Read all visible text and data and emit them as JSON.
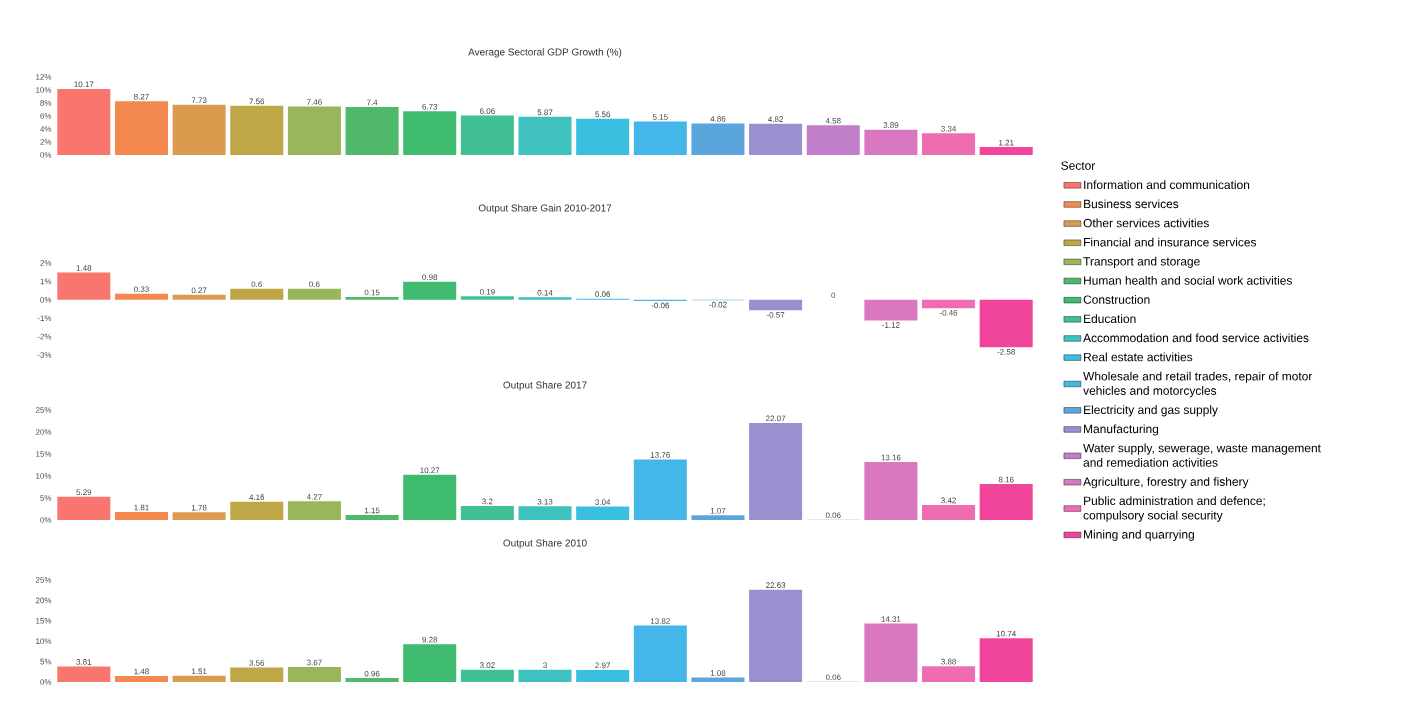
{
  "chart_data": [
    {
      "type": "bar",
      "stacked": true,
      "title": "Average Sectoral GDP Growth (%)",
      "legend": "right",
      "legend_title": "Sector",
      "tick_labels": "y",
      "data_labels": true,
      "categories": [
        null,
        null,
        null,
        null,
        null,
        null,
        null,
        null,
        null,
        null,
        null,
        null,
        null,
        null,
        null,
        null,
        null
      ],
      "ylim": [
        0,
        12
      ],
      "yticks": [
        {
          "value": 0,
          "label": "0%"
        },
        {
          "value": 2,
          "label": "2%"
        },
        {
          "value": 4,
          "label": "4%"
        },
        {
          "value": 6,
          "label": "6%"
        },
        {
          "value": 8,
          "label": "8%"
        },
        {
          "value": 10,
          "label": "10%"
        },
        {
          "value": 12,
          "label": "12%"
        }
      ],
      "series": [
        {
          "name": "Information and communication",
          "color": "#f8766d",
          "values": [
            10.17,
            null,
            null,
            null,
            null,
            null,
            null,
            null,
            null,
            null,
            null,
            null,
            null,
            null,
            null,
            null,
            null
          ]
        },
        {
          "name": "Business services",
          "color": "#f4894f",
          "values": [
            null,
            8.27,
            null,
            null,
            null,
            null,
            null,
            null,
            null,
            null,
            null,
            null,
            null,
            null,
            null,
            null,
            null
          ]
        },
        {
          "name": "Other services activities",
          "color": "#dc9a4f",
          "values": [
            null,
            null,
            7.73,
            null,
            null,
            null,
            null,
            null,
            null,
            null,
            null,
            null,
            null,
            null,
            null,
            null,
            null
          ]
        },
        {
          "name": "Financial and insurance services",
          "color": "#bfa646",
          "values": [
            null,
            null,
            null,
            7.56,
            null,
            null,
            null,
            null,
            null,
            null,
            null,
            null,
            null,
            null,
            null,
            null,
            null
          ]
        },
        {
          "name": "Transport and storage",
          "color": "#98b65a",
          "values": [
            null,
            null,
            null,
            null,
            7.46,
            null,
            null,
            null,
            null,
            null,
            null,
            null,
            null,
            null,
            null,
            null,
            null
          ]
        },
        {
          "name": "Human health and social work activities",
          "color": "#4fb86a",
          "values": [
            null,
            null,
            null,
            null,
            null,
            7.4,
            null,
            null,
            null,
            null,
            null,
            null,
            null,
            null,
            null,
            null,
            null
          ]
        },
        {
          "name": "Construction",
          "color": "#3fbb6f",
          "values": [
            null,
            null,
            null,
            null,
            null,
            null,
            6.73,
            null,
            null,
            null,
            null,
            null,
            null,
            null,
            null,
            null,
            null
          ]
        },
        {
          "name": "Education",
          "color": "#41bf95",
          "values": [
            null,
            null,
            null,
            null,
            null,
            null,
            null,
            6.06,
            null,
            null,
            null,
            null,
            null,
            null,
            null,
            null,
            null
          ]
        },
        {
          "name": "Accommodation and food service activities",
          "color": "#3ec1bf",
          "values": [
            null,
            null,
            null,
            null,
            null,
            null,
            null,
            null,
            5.87,
            null,
            null,
            null,
            null,
            null,
            null,
            null,
            null
          ]
        },
        {
          "name": "Real estate activities",
          "color": "#3bbfe0",
          "values": [
            null,
            null,
            null,
            null,
            null,
            null,
            null,
            null,
            null,
            5.56,
            null,
            null,
            null,
            null,
            null,
            null,
            null
          ]
        },
        {
          "name": "Wholesale and retail trades, repair of motor vehicles and motorcycles",
          "color": "#45b6e8",
          "values": [
            null,
            null,
            null,
            null,
            null,
            null,
            null,
            null,
            null,
            null,
            5.15,
            null,
            null,
            null,
            null,
            null,
            null
          ]
        },
        {
          "name": "Electricity and gas supply",
          "color": "#5aa6dc",
          "values": [
            null,
            null,
            null,
            null,
            null,
            null,
            null,
            null,
            null,
            null,
            null,
            4.86,
            null,
            null,
            null,
            null,
            null
          ]
        },
        {
          "name": "Manufacturing",
          "color": "#9a8fcf",
          "values": [
            null,
            null,
            null,
            null,
            null,
            null,
            null,
            null,
            null,
            null,
            null,
            null,
            4.82,
            null,
            null,
            null,
            null
          ]
        },
        {
          "name": "Water supply, sewerage, waste management and remediation activities",
          "color": "#c27fc9",
          "values": [
            null,
            null,
            null,
            null,
            null,
            null,
            null,
            null,
            null,
            null,
            null,
            null,
            null,
            4.58,
            null,
            null,
            null
          ]
        },
        {
          "name": "Agriculture, forestry and fishery",
          "color": "#d978c0",
          "values": [
            null,
            null,
            null,
            null,
            null,
            null,
            null,
            null,
            null,
            null,
            null,
            null,
            null,
            null,
            3.89,
            null,
            null
          ]
        },
        {
          "name": "Public administration and defence; compulsory social security",
          "color": "#ee6cb0",
          "values": [
            null,
            null,
            null,
            null,
            null,
            null,
            null,
            null,
            null,
            null,
            null,
            null,
            null,
            null,
            null,
            3.34,
            null
          ]
        },
        {
          "name": "Mining and quarrying",
          "color": "#f0459a",
          "values": [
            null,
            null,
            null,
            null,
            null,
            null,
            null,
            null,
            null,
            null,
            null,
            null,
            null,
            null,
            null,
            null,
            1.21
          ]
        }
      ]
    },
    {
      "type": "bar",
      "stacked": true,
      "title": "Output Share Gain 2010-2017",
      "tick_labels": "y",
      "data_labels": true,
      "categories": [
        null,
        null,
        null,
        null,
        null,
        null,
        null,
        null,
        null,
        null,
        null,
        null,
        null,
        null,
        null,
        null,
        null
      ],
      "ylim": [
        -3,
        2
      ],
      "yticks": [
        {
          "value": -3,
          "label": "-3%"
        },
        {
          "value": -2,
          "label": "-2%"
        },
        {
          "value": -1,
          "label": "-1%"
        },
        {
          "value": 0,
          "label": "0%"
        },
        {
          "value": 1,
          "label": "1%"
        },
        {
          "value": 2,
          "label": "2%"
        }
      ],
      "series": [
        {
          "color": "#f8766d",
          "values": [
            1.48,
            null,
            null,
            null,
            null,
            null,
            null,
            null,
            null,
            null,
            null,
            null,
            null,
            null,
            null,
            null,
            null
          ]
        },
        {
          "color": "#f4894f",
          "values": [
            null,
            0.33,
            null,
            null,
            null,
            null,
            null,
            null,
            null,
            null,
            null,
            null,
            null,
            null,
            null,
            null,
            null
          ]
        },
        {
          "color": "#dc9a4f",
          "values": [
            null,
            null,
            0.27,
            null,
            null,
            null,
            null,
            null,
            null,
            null,
            null,
            null,
            null,
            null,
            null,
            null,
            null
          ]
        },
        {
          "color": "#bfa646",
          "values": [
            null,
            null,
            null,
            0.6,
            null,
            null,
            null,
            null,
            null,
            null,
            null,
            null,
            null,
            null,
            null,
            null,
            null
          ]
        },
        {
          "color": "#98b65a",
          "values": [
            null,
            null,
            null,
            null,
            0.6,
            null,
            null,
            null,
            null,
            null,
            null,
            null,
            null,
            null,
            null,
            null,
            null
          ]
        },
        {
          "color": "#4fb86a",
          "values": [
            null,
            null,
            null,
            null,
            null,
            0.15,
            null,
            null,
            null,
            null,
            null,
            null,
            null,
            null,
            null,
            null,
            null
          ]
        },
        {
          "color": "#3fbb6f",
          "values": [
            null,
            null,
            null,
            null,
            null,
            null,
            0.98,
            null,
            null,
            null,
            null,
            null,
            null,
            null,
            null,
            null,
            null
          ]
        },
        {
          "color": "#41bf95",
          "values": [
            null,
            null,
            null,
            null,
            null,
            null,
            null,
            0.19,
            null,
            null,
            null,
            null,
            null,
            null,
            null,
            null,
            null
          ]
        },
        {
          "color": "#3ec1bf",
          "values": [
            null,
            null,
            null,
            null,
            null,
            null,
            null,
            null,
            0.14,
            null,
            null,
            null,
            null,
            null,
            null,
            null,
            null
          ]
        },
        {
          "color": "#3bbfe0",
          "values": [
            null,
            null,
            null,
            null,
            null,
            null,
            null,
            null,
            null,
            0.06,
            null,
            null,
            null,
            null,
            null,
            null,
            null
          ]
        },
        {
          "color": "#45b6e8",
          "values": [
            null,
            null,
            null,
            null,
            null,
            null,
            null,
            null,
            null,
            null,
            -0.06,
            null,
            null,
            null,
            null,
            null,
            null
          ]
        },
        {
          "color": "#5aa6dc",
          "values": [
            null,
            null,
            null,
            null,
            null,
            null,
            null,
            null,
            null,
            null,
            null,
            -0.02,
            null,
            null,
            null,
            null,
            null
          ]
        },
        {
          "color": "#9a8fcf",
          "values": [
            null,
            null,
            null,
            null,
            null,
            null,
            null,
            null,
            null,
            null,
            null,
            null,
            -0.57,
            null,
            null,
            null,
            null
          ]
        },
        {
          "color": "#c27fc9",
          "values": [
            null,
            null,
            null,
            null,
            null,
            null,
            null,
            null,
            null,
            null,
            null,
            null,
            null,
            0,
            null,
            null,
            null
          ]
        },
        {
          "color": "#d978c0",
          "values": [
            null,
            null,
            null,
            null,
            null,
            null,
            null,
            null,
            null,
            null,
            null,
            null,
            null,
            null,
            -1.12,
            null,
            null
          ]
        },
        {
          "color": "#ee6cb0",
          "values": [
            null,
            null,
            null,
            null,
            null,
            null,
            null,
            null,
            null,
            null,
            null,
            null,
            null,
            null,
            null,
            -0.46,
            null
          ]
        },
        {
          "color": "#f0459a",
          "values": [
            null,
            null,
            null,
            null,
            null,
            null,
            null,
            null,
            null,
            null,
            null,
            null,
            null,
            null,
            null,
            null,
            -2.58
          ]
        }
      ]
    },
    {
      "type": "bar",
      "stacked": true,
      "title": "Output Share 2017",
      "tick_labels": "y",
      "data_labels": true,
      "categories": [
        null,
        null,
        null,
        null,
        null,
        null,
        null,
        null,
        null,
        null,
        null,
        null,
        null,
        null,
        null,
        null,
        null
      ],
      "ylim": [
        0,
        25
      ],
      "yticks": [
        {
          "value": 0,
          "label": "0%"
        },
        {
          "value": 5,
          "label": "5%"
        },
        {
          "value": 10,
          "label": "10%"
        },
        {
          "value": 15,
          "label": "15%"
        },
        {
          "value": 20,
          "label": "20%"
        },
        {
          "value": 25,
          "label": "25%"
        }
      ],
      "series": [
        {
          "color": "#f8766d",
          "values": [
            5.29,
            null,
            null,
            null,
            null,
            null,
            null,
            null,
            null,
            null,
            null,
            null,
            null,
            null,
            null,
            null,
            null
          ]
        },
        {
          "color": "#f4894f",
          "values": [
            null,
            1.81,
            null,
            null,
            null,
            null,
            null,
            null,
            null,
            null,
            null,
            null,
            null,
            null,
            null,
            null,
            null
          ]
        },
        {
          "color": "#dc9a4f",
          "values": [
            null,
            null,
            1.78,
            null,
            null,
            null,
            null,
            null,
            null,
            null,
            null,
            null,
            null,
            null,
            null,
            null,
            null
          ]
        },
        {
          "color": "#bfa646",
          "values": [
            null,
            null,
            null,
            4.16,
            null,
            null,
            null,
            null,
            null,
            null,
            null,
            null,
            null,
            null,
            null,
            null,
            null
          ]
        },
        {
          "color": "#98b65a",
          "values": [
            null,
            null,
            null,
            null,
            4.27,
            null,
            null,
            null,
            null,
            null,
            null,
            null,
            null,
            null,
            null,
            null,
            null
          ]
        },
        {
          "color": "#4fb86a",
          "values": [
            null,
            null,
            null,
            null,
            null,
            1.15,
            null,
            null,
            null,
            null,
            null,
            null,
            null,
            null,
            null,
            null,
            null
          ]
        },
        {
          "color": "#3fbb6f",
          "values": [
            null,
            null,
            null,
            null,
            null,
            null,
            10.27,
            null,
            null,
            null,
            null,
            null,
            null,
            null,
            null,
            null,
            null
          ]
        },
        {
          "color": "#41bf95",
          "values": [
            null,
            null,
            null,
            null,
            null,
            null,
            null,
            3.2,
            null,
            null,
            null,
            null,
            null,
            null,
            null,
            null,
            null
          ]
        },
        {
          "color": "#3ec1bf",
          "values": [
            null,
            null,
            null,
            null,
            null,
            null,
            null,
            null,
            3.13,
            null,
            null,
            null,
            null,
            null,
            null,
            null,
            null
          ]
        },
        {
          "color": "#3bbfe0",
          "values": [
            null,
            null,
            null,
            null,
            null,
            null,
            null,
            null,
            null,
            3.04,
            null,
            null,
            null,
            null,
            null,
            null,
            null
          ]
        },
        {
          "color": "#45b6e8",
          "values": [
            null,
            null,
            null,
            null,
            null,
            null,
            null,
            null,
            null,
            null,
            13.76,
            null,
            null,
            null,
            null,
            null,
            null
          ]
        },
        {
          "color": "#5aa6dc",
          "values": [
            null,
            null,
            null,
            null,
            null,
            null,
            null,
            null,
            null,
            null,
            null,
            1.07,
            null,
            null,
            null,
            null,
            null
          ]
        },
        {
          "color": "#9a8fcf",
          "values": [
            null,
            null,
            null,
            null,
            null,
            null,
            null,
            null,
            null,
            null,
            null,
            null,
            22.07,
            null,
            null,
            null,
            null
          ]
        },
        {
          "color": "#c27fc9",
          "values": [
            null,
            null,
            null,
            null,
            null,
            null,
            null,
            null,
            null,
            null,
            null,
            null,
            null,
            0.06,
            null,
            null,
            null
          ]
        },
        {
          "color": "#d978c0",
          "values": [
            null,
            null,
            null,
            null,
            null,
            null,
            null,
            null,
            null,
            null,
            null,
            null,
            null,
            null,
            13.16,
            null,
            null
          ]
        },
        {
          "color": "#ee6cb0",
          "values": [
            null,
            null,
            null,
            null,
            null,
            null,
            null,
            null,
            null,
            null,
            null,
            null,
            null,
            null,
            null,
            3.42,
            null
          ]
        },
        {
          "color": "#f0459a",
          "values": [
            null,
            null,
            null,
            null,
            null,
            null,
            null,
            null,
            null,
            null,
            null,
            null,
            null,
            null,
            null,
            null,
            8.16
          ]
        }
      ]
    },
    {
      "type": "bar",
      "stacked": true,
      "title": "Output Share 2010",
      "tick_labels": "y",
      "data_labels": true,
      "categories": [
        null,
        null,
        null,
        null,
        null,
        null,
        null,
        null,
        null,
        null,
        null,
        null,
        null,
        null,
        null,
        null,
        null
      ],
      "ylim": [
        0,
        25
      ],
      "yticks": [
        {
          "value": 0,
          "label": "0%"
        },
        {
          "value": 5,
          "label": "5%"
        },
        {
          "value": 10,
          "label": "10%"
        },
        {
          "value": 15,
          "label": "15%"
        },
        {
          "value": 20,
          "label": "20%"
        },
        {
          "value": 25,
          "label": "25%"
        }
      ],
      "series": [
        {
          "color": "#f8766d",
          "values": [
            3.81,
            null,
            null,
            null,
            null,
            null,
            null,
            null,
            null,
            null,
            null,
            null,
            null,
            null,
            null,
            null,
            null
          ]
        },
        {
          "color": "#f4894f",
          "values": [
            null,
            1.48,
            null,
            null,
            null,
            null,
            null,
            null,
            null,
            null,
            null,
            null,
            null,
            null,
            null,
            null,
            null
          ]
        },
        {
          "color": "#dc9a4f",
          "values": [
            null,
            null,
            1.51,
            null,
            null,
            null,
            null,
            null,
            null,
            null,
            null,
            null,
            null,
            null,
            null,
            null,
            null
          ]
        },
        {
          "color": "#bfa646",
          "values": [
            null,
            null,
            null,
            3.56,
            null,
            null,
            null,
            null,
            null,
            null,
            null,
            null,
            null,
            null,
            null,
            null,
            null
          ]
        },
        {
          "color": "#98b65a",
          "values": [
            null,
            null,
            null,
            null,
            3.67,
            null,
            null,
            null,
            null,
            null,
            null,
            null,
            null,
            null,
            null,
            null,
            null
          ]
        },
        {
          "color": "#4fb86a",
          "values": [
            null,
            null,
            null,
            null,
            null,
            0.96,
            null,
            null,
            null,
            null,
            null,
            null,
            null,
            null,
            null,
            null,
            null
          ]
        },
        {
          "color": "#3fbb6f",
          "values": [
            null,
            null,
            null,
            null,
            null,
            null,
            9.28,
            null,
            null,
            null,
            null,
            null,
            null,
            null,
            null,
            null,
            null
          ]
        },
        {
          "color": "#41bf95",
          "values": [
            null,
            null,
            null,
            null,
            null,
            null,
            null,
            3.02,
            null,
            null,
            null,
            null,
            null,
            null,
            null,
            null,
            null
          ]
        },
        {
          "color": "#3ec1bf",
          "values": [
            null,
            null,
            null,
            null,
            null,
            null,
            null,
            null,
            3,
            null,
            null,
            null,
            null,
            null,
            null,
            null,
            null
          ]
        },
        {
          "color": "#3bbfe0",
          "values": [
            null,
            null,
            null,
            null,
            null,
            null,
            null,
            null,
            null,
            2.97,
            null,
            null,
            null,
            null,
            null,
            null,
            null
          ]
        },
        {
          "color": "#45b6e8",
          "values": [
            null,
            null,
            null,
            null,
            null,
            null,
            null,
            null,
            null,
            null,
            13.82,
            null,
            null,
            null,
            null,
            null,
            null
          ]
        },
        {
          "color": "#5aa6dc",
          "values": [
            null,
            null,
            null,
            null,
            null,
            null,
            null,
            null,
            null,
            null,
            null,
            1.08,
            null,
            null,
            null,
            null,
            null
          ]
        },
        {
          "color": "#9a8fcf",
          "values": [
            null,
            null,
            null,
            null,
            null,
            null,
            null,
            null,
            null,
            null,
            null,
            null,
            22.63,
            null,
            null,
            null,
            null
          ]
        },
        {
          "color": "#c27fc9",
          "values": [
            null,
            null,
            null,
            null,
            null,
            null,
            null,
            null,
            null,
            null,
            null,
            null,
            null,
            0.06,
            null,
            null,
            null
          ]
        },
        {
          "color": "#d978c0",
          "values": [
            null,
            null,
            null,
            null,
            null,
            null,
            null,
            null,
            null,
            null,
            null,
            null,
            null,
            null,
            14.31,
            null,
            null
          ]
        },
        {
          "color": "#ee6cb0",
          "values": [
            null,
            null,
            null,
            null,
            null,
            null,
            null,
            null,
            null,
            null,
            null,
            null,
            null,
            null,
            null,
            3.88,
            null
          ]
        },
        {
          "color": "#f0459a",
          "values": [
            null,
            null,
            null,
            null,
            null,
            null,
            null,
            null,
            null,
            null,
            null,
            null,
            null,
            null,
            null,
            null,
            10.74
          ]
        }
      ]
    }
  ]
}
